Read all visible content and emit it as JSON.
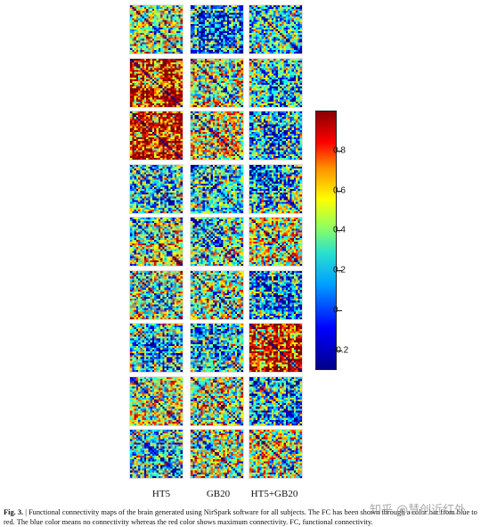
{
  "figure": {
    "column_labels": [
      "HT5",
      "GB20",
      "HT5+GB20"
    ],
    "rows": 9
  },
  "colorbar": {
    "ticks": [
      "0.8",
      "0.6",
      "0.4",
      "0.2",
      "0",
      "-0.2"
    ],
    "tick_values": [
      0.8,
      0.6,
      0.4,
      0.2,
      0,
      -0.2
    ],
    "range": [
      -0.3,
      1.0
    ],
    "colormap": "jet"
  },
  "caption": {
    "label": "Fig. 3.",
    "text": "| Functional connectivity maps of the brain generated using NirSpark software for all subjects. The FC has been shown through a color bar from blue to red. The blue color means no connectivity whereas the red color shows maximum connectivity. FC, functional connectivity."
  },
  "watermark": {
    "text": "知乎 @慧创近红外"
  }
}
